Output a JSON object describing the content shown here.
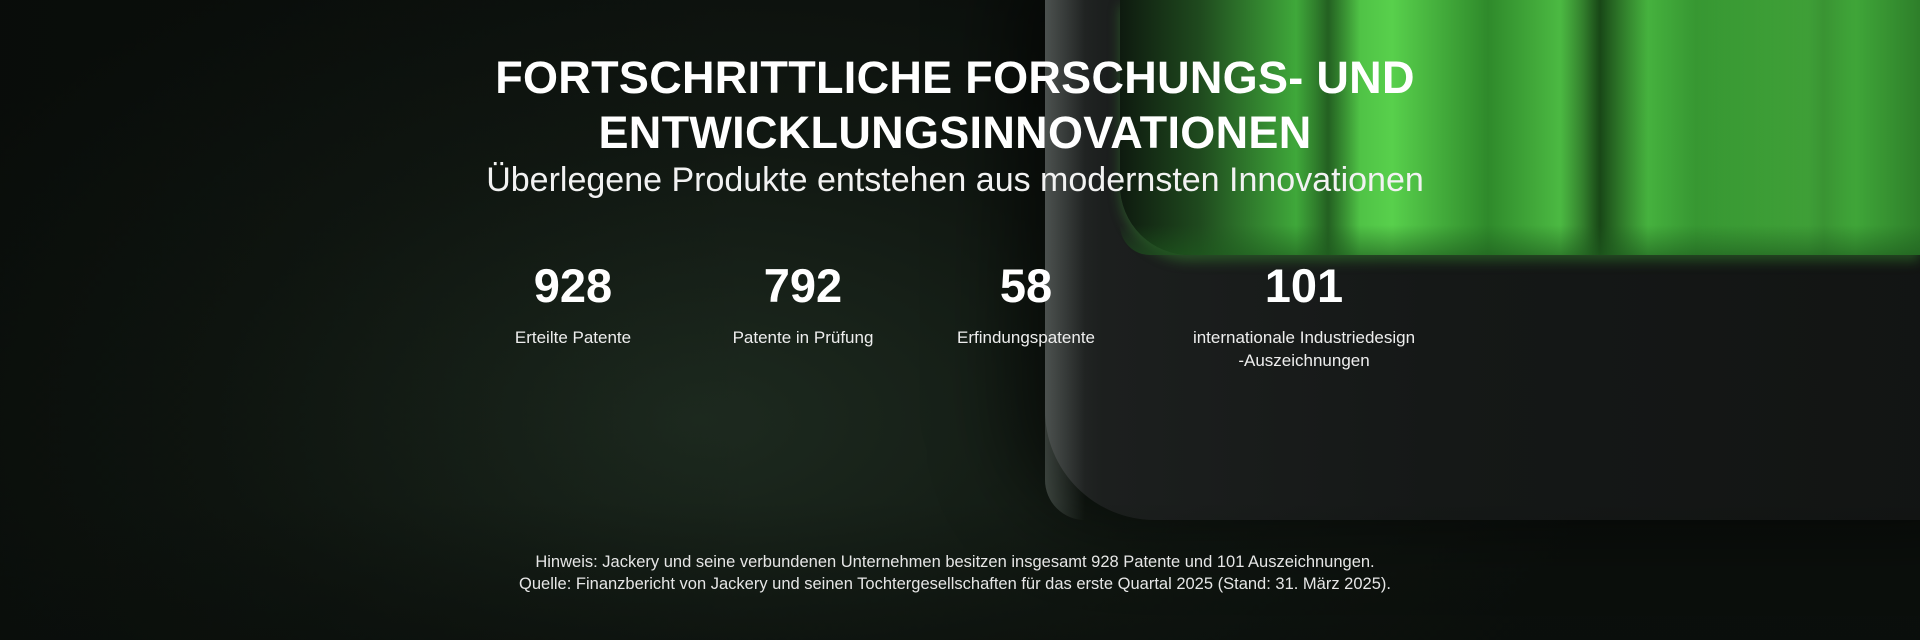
{
  "header": {
    "title_line1": "FORTSCHRITTLICHE FORSCHUNGS- UND",
    "title_line2": "ENTWICKLUNGSINNOVATIONEN",
    "subtitle": "Überlegene Produkte entstehen aus modernsten Innovationen"
  },
  "stats": [
    {
      "value": "928",
      "label": "Erteilte Patente"
    },
    {
      "value": "792",
      "label": "Patente in Prüfung"
    },
    {
      "value": "58",
      "label": "Erfindungspatente"
    },
    {
      "value": "101",
      "label": "internationale Industriedesign",
      "label2": "-Auszeichnungen"
    }
  ],
  "footnote": {
    "line1": "Hinweis: Jackery und seine verbundenen Unternehmen besitzen insgesamt 928 Patente und 101 Auszeichnungen.",
    "line2": "Quelle: Finanzbericht von Jackery und seinen Tochtergesellschaften für das erste Quartal 2025 (Stand: 31. März 2025)."
  },
  "colors": {
    "accent_green": "#4cc243",
    "background": "#111812"
  }
}
